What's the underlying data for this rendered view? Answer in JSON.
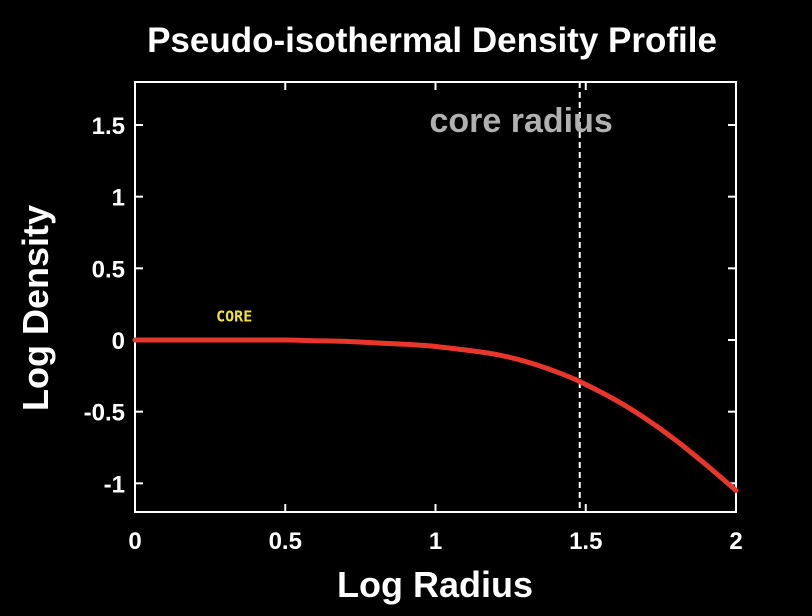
{
  "chart_data": {
    "type": "line",
    "title": "Pseudo-isothermal Density Profile",
    "xlabel": "Log Radius",
    "ylabel": "Log Density",
    "xlim": [
      0,
      2
    ],
    "ylim": [
      -1.2,
      1.8
    ],
    "xticks": [
      {
        "value": 0,
        "label": "0"
      },
      {
        "value": 0.5,
        "label": "0.5"
      },
      {
        "value": 1,
        "label": "1"
      },
      {
        "value": 1.5,
        "label": "1.5"
      },
      {
        "value": 2,
        "label": "2"
      }
    ],
    "yticks": [
      {
        "value": 1.5,
        "label": "1.5"
      },
      {
        "value": 1,
        "label": "1"
      },
      {
        "value": 0.5,
        "label": "0.5"
      },
      {
        "value": 0,
        "label": "0"
      },
      {
        "value": -0.5,
        "label": "-0.5"
      },
      {
        "value": -1,
        "label": "-1"
      }
    ],
    "grid": false,
    "series": [
      {
        "color": "#e8362a",
        "x": [
          0,
          0.1,
          0.2,
          0.3,
          0.4,
          0.5,
          0.6,
          0.7,
          0.8,
          0.9,
          1.0,
          1.1,
          1.2,
          1.3,
          1.4,
          1.48,
          1.6,
          1.7,
          1.8,
          1.9,
          2.0
        ],
        "y": [
          0,
          0,
          0,
          0,
          0,
          0,
          -0.005,
          -0.01,
          -0.02,
          -0.03,
          -0.045,
          -0.07,
          -0.1,
          -0.15,
          -0.22,
          -0.29,
          -0.42,
          -0.55,
          -0.7,
          -0.87,
          -1.05
        ]
      }
    ],
    "annotations": [
      {
        "type": "vline",
        "x": 1.48,
        "style": "dashed",
        "color": "#ffffff"
      },
      {
        "type": "text",
        "text": "core radius",
        "x": 0.98,
        "y": 1.45,
        "color": "#b0b0b0"
      },
      {
        "type": "text",
        "text": "CORE",
        "x": 0.27,
        "y": 0.13,
        "color": "#f0e040"
      }
    ]
  }
}
